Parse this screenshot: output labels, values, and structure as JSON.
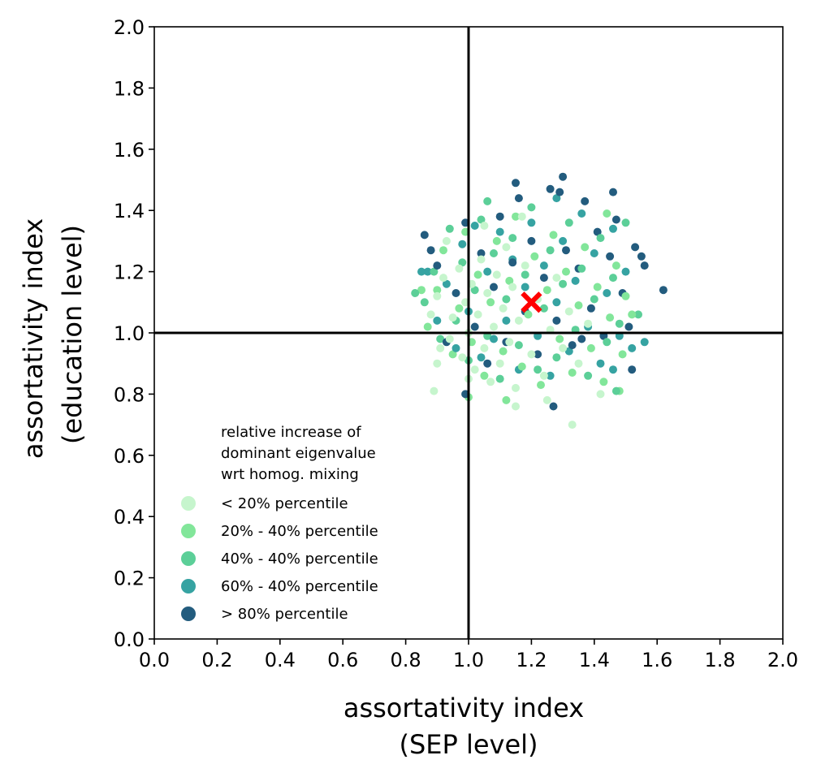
{
  "chart_data": {
    "type": "scatter",
    "title": "",
    "xlabel": [
      "assortativity index",
      "(SEP level)"
    ],
    "ylabel": [
      "assortativity index",
      "(education level)"
    ],
    "xlim": [
      0,
      2
    ],
    "ylim": [
      0,
      2
    ],
    "xticks": [
      "0.0",
      "0.2",
      "0.4",
      "0.6",
      "0.8",
      "1.0",
      "1.2",
      "1.4",
      "1.6",
      "1.8",
      "2.0"
    ],
    "yticks": [
      "0.0",
      "0.2",
      "0.4",
      "0.6",
      "0.8",
      "1.0",
      "1.2",
      "1.4",
      "1.6",
      "1.8",
      "2.0"
    ],
    "grid": false,
    "reference_lines": {
      "x": 1.0,
      "y": 1.0
    },
    "reference_point": {
      "x": 1.2,
      "y": 1.1,
      "marker": "x",
      "color": "#ff0000"
    },
    "legend": {
      "placement": "lower-left",
      "title": [
        "relative increase of",
        "dominant eigenvalue",
        "wrt homog. mixing"
      ]
    },
    "series": [
      {
        "name": "< 20% percentile",
        "color": "#c6f5cd",
        "points": [
          [
            0.88,
            1.06
          ],
          [
            0.91,
            0.95
          ],
          [
            0.9,
            1.12
          ],
          [
            0.92,
            1.18
          ],
          [
            0.94,
            0.98
          ],
          [
            0.95,
            1.05
          ],
          [
            0.97,
            1.21
          ],
          [
            0.98,
            0.92
          ],
          [
            0.99,
            1.1
          ],
          [
            1.0,
            1.0
          ],
          [
            1.01,
            1.16
          ],
          [
            1.02,
            0.88
          ],
          [
            1.03,
            1.06
          ],
          [
            1.04,
            1.24
          ],
          [
            1.05,
            0.95
          ],
          [
            1.06,
            1.13
          ],
          [
            1.07,
            0.84
          ],
          [
            1.08,
            1.02
          ],
          [
            1.09,
            1.19
          ],
          [
            1.1,
            0.9
          ],
          [
            1.11,
            1.08
          ],
          [
            1.12,
            1.28
          ],
          [
            1.13,
            0.97
          ],
          [
            1.14,
            1.15
          ],
          [
            1.15,
            0.82
          ],
          [
            1.16,
            1.04
          ],
          [
            1.18,
            1.22
          ],
          [
            1.2,
            0.93
          ],
          [
            1.22,
            1.11
          ],
          [
            1.24,
            0.86
          ],
          [
            1.26,
            1.01
          ],
          [
            1.28,
            1.18
          ],
          [
            1.3,
            0.95
          ],
          [
            1.32,
            1.07
          ],
          [
            1.35,
            0.9
          ],
          [
            1.38,
            1.03
          ],
          [
            0.9,
            0.9
          ],
          [
            0.93,
            1.3
          ],
          [
            1.25,
            0.78
          ],
          [
            1.33,
            0.7
          ],
          [
            1.0,
            0.85
          ],
          [
            1.15,
            0.76
          ],
          [
            0.89,
            0.81
          ],
          [
            1.05,
            1.35
          ],
          [
            1.17,
            1.38
          ],
          [
            1.42,
            0.8
          ]
        ]
      },
      {
        "name": "20% - 40% percentile",
        "color": "#82e69a",
        "points": [
          [
            0.87,
            1.02
          ],
          [
            0.9,
            1.14
          ],
          [
            0.92,
            1.27
          ],
          [
            0.95,
            0.93
          ],
          [
            0.97,
            1.08
          ],
          [
            0.99,
            1.33
          ],
          [
            1.01,
            0.97
          ],
          [
            1.03,
            1.19
          ],
          [
            1.05,
            0.86
          ],
          [
            1.07,
            1.1
          ],
          [
            1.09,
            1.3
          ],
          [
            1.11,
            0.94
          ],
          [
            1.13,
            1.17
          ],
          [
            1.15,
            1.38
          ],
          [
            1.17,
            0.89
          ],
          [
            1.19,
            1.06
          ],
          [
            1.21,
            1.25
          ],
          [
            1.23,
            0.83
          ],
          [
            1.25,
            1.14
          ],
          [
            1.27,
            1.32
          ],
          [
            1.29,
            0.98
          ],
          [
            1.31,
            1.2
          ],
          [
            1.33,
            0.87
          ],
          [
            1.35,
            1.09
          ],
          [
            1.37,
            1.28
          ],
          [
            1.39,
            0.95
          ],
          [
            1.41,
            1.15
          ],
          [
            1.43,
            0.84
          ],
          [
            1.45,
            1.05
          ],
          [
            1.47,
            1.22
          ],
          [
            1.49,
            0.93
          ],
          [
            1.5,
            1.12
          ],
          [
            0.85,
            1.14
          ],
          [
            1.0,
            0.79
          ],
          [
            1.48,
            0.81
          ],
          [
            1.44,
            1.39
          ],
          [
            1.12,
            0.78
          ],
          [
            1.52,
            1.06
          ]
        ]
      },
      {
        "name": "40% - 40% percentile",
        "color": "#5ccf98",
        "points": [
          [
            0.86,
            1.1
          ],
          [
            0.89,
            1.2
          ],
          [
            0.91,
            0.98
          ],
          [
            0.94,
            1.34
          ],
          [
            0.96,
            1.04
          ],
          [
            0.98,
            1.23
          ],
          [
            1.0,
            0.91
          ],
          [
            1.02,
            1.14
          ],
          [
            1.04,
            1.37
          ],
          [
            1.06,
            0.99
          ],
          [
            1.08,
            1.26
          ],
          [
            1.1,
            0.85
          ],
          [
            1.12,
            1.11
          ],
          [
            1.14,
            1.31
          ],
          [
            1.16,
            0.96
          ],
          [
            1.18,
            1.19
          ],
          [
            1.2,
            1.41
          ],
          [
            1.22,
            0.88
          ],
          [
            1.24,
            1.08
          ],
          [
            1.26,
            1.27
          ],
          [
            1.28,
            0.92
          ],
          [
            1.3,
            1.16
          ],
          [
            1.32,
            1.36
          ],
          [
            1.34,
            1.01
          ],
          [
            1.36,
            1.21
          ],
          [
            1.38,
            0.86
          ],
          [
            1.4,
            1.11
          ],
          [
            1.42,
            1.31
          ],
          [
            1.44,
            0.97
          ],
          [
            1.46,
            1.18
          ],
          [
            1.48,
            1.03
          ],
          [
            1.5,
            1.36
          ],
          [
            1.54,
            1.06
          ],
          [
            0.83,
            1.13
          ],
          [
            1.47,
            0.81
          ],
          [
            1.06,
            1.43
          ]
        ]
      },
      {
        "name": "60% - 40% percentile",
        "color": "#36a3a2",
        "points": [
          [
            0.87,
            1.2
          ],
          [
            0.9,
            1.04
          ],
          [
            0.93,
            1.16
          ],
          [
            0.96,
            0.95
          ],
          [
            0.98,
            1.29
          ],
          [
            1.0,
            1.07
          ],
          [
            1.02,
            1.35
          ],
          [
            1.04,
            0.92
          ],
          [
            1.06,
            1.2
          ],
          [
            1.08,
            0.98
          ],
          [
            1.1,
            1.33
          ],
          [
            1.12,
            1.04
          ],
          [
            1.14,
            1.24
          ],
          [
            1.16,
            0.88
          ],
          [
            1.18,
            1.15
          ],
          [
            1.2,
            1.36
          ],
          [
            1.22,
            0.99
          ],
          [
            1.24,
            1.22
          ],
          [
            1.26,
            0.86
          ],
          [
            1.28,
            1.1
          ],
          [
            1.3,
            1.3
          ],
          [
            1.32,
            0.94
          ],
          [
            1.34,
            1.17
          ],
          [
            1.36,
            1.39
          ],
          [
            1.38,
            1.02
          ],
          [
            1.4,
            1.26
          ],
          [
            1.42,
            0.9
          ],
          [
            1.44,
            1.13
          ],
          [
            1.46,
            1.34
          ],
          [
            1.48,
            0.99
          ],
          [
            1.5,
            1.2
          ],
          [
            1.52,
            0.95
          ],
          [
            0.85,
            1.2
          ],
          [
            1.28,
            1.44
          ],
          [
            1.56,
            0.97
          ],
          [
            1.46,
            0.88
          ]
        ]
      },
      {
        "name": "> 80% percentile",
        "color": "#235c7e",
        "points": [
          [
            0.86,
            1.32
          ],
          [
            0.88,
            1.27
          ],
          [
            0.9,
            1.22
          ],
          [
            0.93,
            0.97
          ],
          [
            0.96,
            1.13
          ],
          [
            0.99,
            1.36
          ],
          [
            1.02,
            1.02
          ],
          [
            1.04,
            1.26
          ],
          [
            1.06,
            0.9
          ],
          [
            1.08,
            1.15
          ],
          [
            1.1,
            1.38
          ],
          [
            1.12,
            0.97
          ],
          [
            1.14,
            1.23
          ],
          [
            1.16,
            1.44
          ],
          [
            1.18,
            1.07
          ],
          [
            1.2,
            1.3
          ],
          [
            1.22,
            0.93
          ],
          [
            1.24,
            1.18
          ],
          [
            1.26,
            1.47
          ],
          [
            1.28,
            1.04
          ],
          [
            1.3,
            1.51
          ],
          [
            1.31,
            1.27
          ],
          [
            1.33,
            0.96
          ],
          [
            1.35,
            1.21
          ],
          [
            1.37,
            1.43
          ],
          [
            1.39,
            1.08
          ],
          [
            1.41,
            1.33
          ],
          [
            1.43,
            0.99
          ],
          [
            1.45,
            1.25
          ],
          [
            1.47,
            1.37
          ],
          [
            1.49,
            1.13
          ],
          [
            1.51,
            1.02
          ],
          [
            1.53,
            1.28
          ],
          [
            1.55,
            1.25
          ],
          [
            1.56,
            1.22
          ],
          [
            1.62,
            1.14
          ],
          [
            1.15,
            1.49
          ],
          [
            1.27,
            0.76
          ],
          [
            1.29,
            1.46
          ],
          [
            1.36,
            0.98
          ],
          [
            1.52,
            0.88
          ],
          [
            0.99,
            0.8
          ],
          [
            1.46,
            1.46
          ]
        ]
      }
    ]
  }
}
